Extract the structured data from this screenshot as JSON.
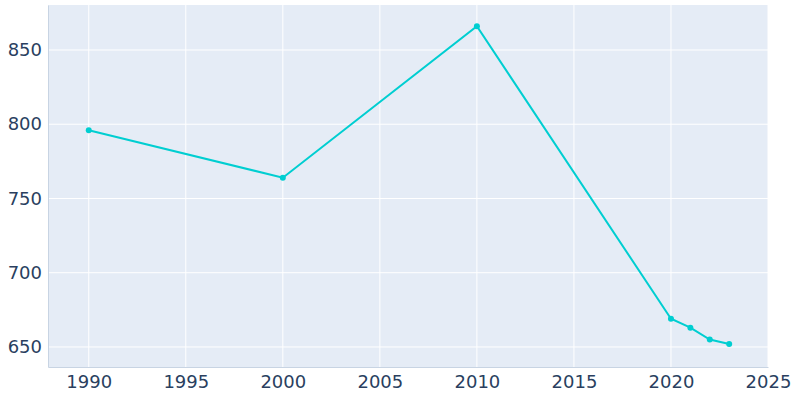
{
  "chart_data": {
    "type": "line",
    "x": [
      1990,
      2000,
      2010,
      2020,
      2021,
      2022,
      2023
    ],
    "values": [
      796,
      764,
      866,
      669,
      663,
      655,
      652
    ],
    "color": "#00ced1",
    "marker": "circle",
    "xlim": [
      1987.9,
      2025
    ],
    "ylim": [
      636.5,
      880.3
    ],
    "xticks": [
      1990,
      1995,
      2000,
      2005,
      2010,
      2015,
      2020,
      2025
    ],
    "yticks": [
      650,
      700,
      750,
      800,
      850
    ],
    "grid": true
  }
}
